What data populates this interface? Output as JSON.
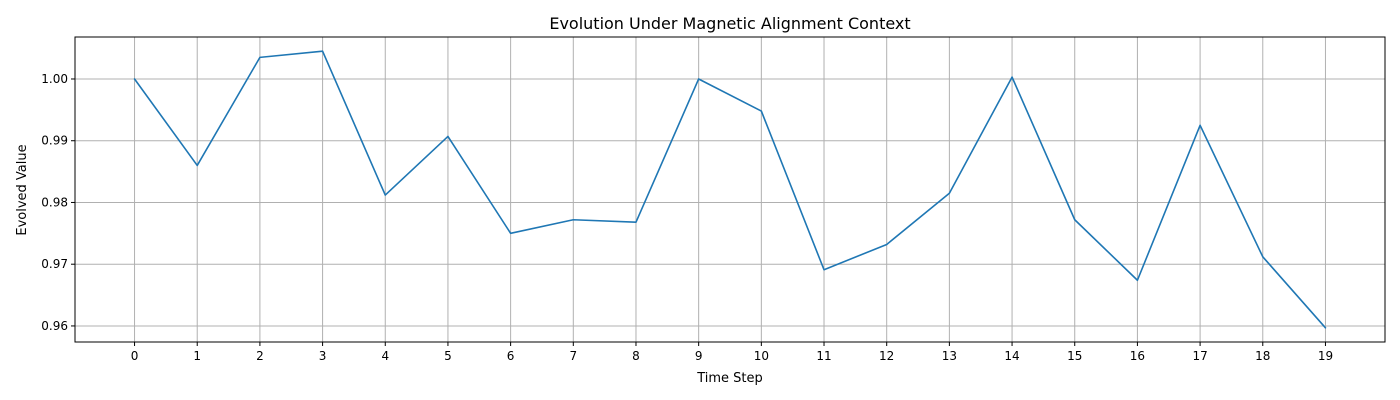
{
  "chart_data": {
    "type": "line",
    "title": "Evolution Under Magnetic Alignment Context",
    "xlabel": "Time Step",
    "ylabel": "Evolved Value",
    "x": [
      0,
      1,
      2,
      3,
      4,
      5,
      6,
      7,
      8,
      9,
      10,
      11,
      12,
      13,
      14,
      15,
      16,
      17,
      18,
      19
    ],
    "x_tick_labels": [
      "0",
      "1",
      "2",
      "3",
      "4",
      "5",
      "6",
      "7",
      "8",
      "9",
      "10",
      "11",
      "12",
      "13",
      "14",
      "15",
      "16",
      "17",
      "18",
      "19"
    ],
    "series": [
      {
        "values": [
          1.0,
          0.986,
          1.0035,
          1.0045,
          0.9812,
          0.9907,
          0.975,
          0.9772,
          0.9768,
          1.0,
          0.9948,
          0.9691,
          0.9732,
          0.9815,
          1.0003,
          0.9772,
          0.9674,
          0.9925,
          0.9712,
          0.9597
        ],
        "color": "#1f77b4"
      }
    ],
    "y_ticks": [
      0.96,
      0.97,
      0.98,
      0.99,
      1.0
    ],
    "y_tick_labels": [
      "0.96",
      "0.97",
      "0.98",
      "0.99",
      "1.00"
    ],
    "xlim": [
      -0.95,
      19.95
    ],
    "ylim": [
      0.9574,
      1.0068
    ],
    "grid": true,
    "colors": {
      "line": "#1f77b4",
      "grid": "#b0b0b0",
      "axes": "#000000",
      "background": "#ffffff"
    }
  }
}
